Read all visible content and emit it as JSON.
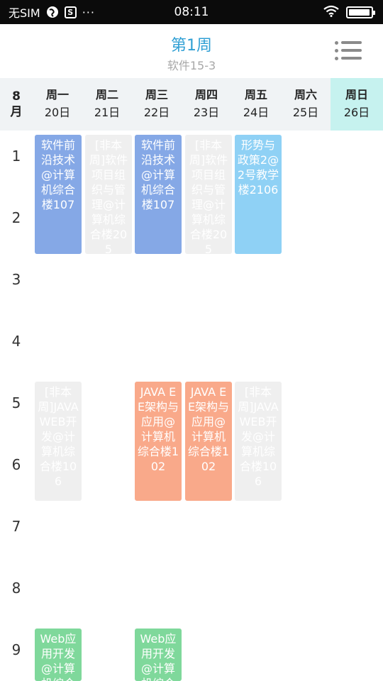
{
  "status_bar": {
    "carrier": "无SIM",
    "time": "08:11",
    "more": "···",
    "battery_level": 0.95
  },
  "header": {
    "week_title": "第1周",
    "class_name": "软件15-3",
    "menu_icon": "list-menu-icon"
  },
  "calendar": {
    "month_line1": "8",
    "month_line2": "月",
    "days": [
      {
        "name": "周一",
        "date": "20日"
      },
      {
        "name": "周二",
        "date": "21日"
      },
      {
        "name": "周三",
        "date": "22日"
      },
      {
        "name": "周四",
        "date": "23日"
      },
      {
        "name": "周五",
        "date": "24日"
      },
      {
        "name": "周六",
        "date": "25日"
      },
      {
        "name": "周日",
        "date": "26日"
      }
    ],
    "today_index": 6,
    "periods": [
      "1",
      "2",
      "3",
      "4",
      "5",
      "6",
      "7",
      "8",
      "9"
    ]
  },
  "courses": [
    {
      "text": "软件前沿技术@计算机综合楼107",
      "color": "#85a8e6"
    },
    {
      "text": "[非本周]软件项目组织与管理@计算机综合楼205",
      "color": "#efefef"
    },
    {
      "text": "软件前沿技术@计算机综合楼107",
      "color": "#85a8e6"
    },
    {
      "text": "[非本周]软件项目组织与管理@计算机综合楼205",
      "color": "#efefef"
    },
    {
      "text": "形势与政策2@2号教学楼2106",
      "color": "#8fd1f5"
    },
    {
      "text": "[非本周]JAVA WEB开发@计算机综合楼106",
      "color": "#efefef"
    },
    {
      "text": "JAVA EE架构与应用@计算机综合楼102",
      "color": "#f9a98a"
    },
    {
      "text": "JAVA EE架构与应用@计算机综合楼102",
      "color": "#f9a98a"
    },
    {
      "text": "[非本周]JAVA WEB开发@计算机综合楼106",
      "color": "#efefef"
    },
    {
      "text": "Web应用开发@计算机综合楼",
      "color": "#7fd89b"
    },
    {
      "text": "Web应用开发@计算机综合楼",
      "color": "#7fd89b"
    }
  ]
}
